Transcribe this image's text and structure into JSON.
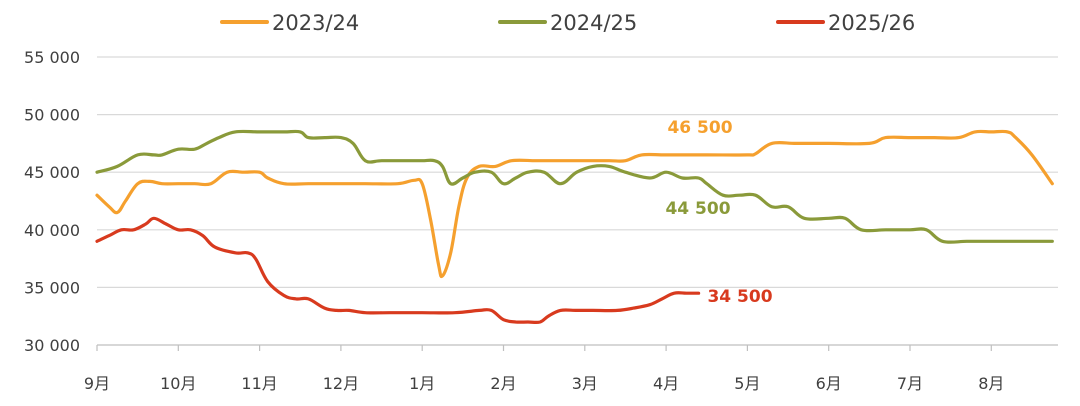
{
  "chart_data": {
    "type": "line",
    "title": "",
    "xlabel": "",
    "ylabel": "",
    "ylim": [
      30000,
      55000
    ],
    "yticks": [
      30000,
      35000,
      40000,
      45000,
      50000,
      55000
    ],
    "ytick_labels": [
      "30 000",
      "35 000",
      "40 000",
      "45 000",
      "50 000",
      "55 000"
    ],
    "months": [
      "9月",
      "10月",
      "11月",
      "12月",
      "1月",
      "2月",
      "3月",
      "4月",
      "5月",
      "6月",
      "7月",
      "8月"
    ],
    "x_unit": "month index (0 = start of 9月)",
    "grid": true,
    "legend_position": "top",
    "series": [
      {
        "name": "2023/24",
        "color": "#F5A02E",
        "end_label": "46 500",
        "points": [
          [
            0,
            43000
          ],
          [
            0.15,
            42000
          ],
          [
            0.25,
            41500
          ],
          [
            0.35,
            42500
          ],
          [
            0.5,
            44000
          ],
          [
            0.65,
            44200
          ],
          [
            0.8,
            44000
          ],
          [
            1.0,
            44000
          ],
          [
            1.2,
            44000
          ],
          [
            1.4,
            44000
          ],
          [
            1.6,
            45000
          ],
          [
            1.8,
            45000
          ],
          [
            2.0,
            45000
          ],
          [
            2.1,
            44500
          ],
          [
            2.3,
            44000
          ],
          [
            2.6,
            44000
          ],
          [
            3.0,
            44000
          ],
          [
            3.3,
            44000
          ],
          [
            3.7,
            44000
          ],
          [
            3.9,
            44300
          ],
          [
            4.0,
            44000
          ],
          [
            4.1,
            41000
          ],
          [
            4.2,
            37000
          ],
          [
            4.25,
            36000
          ],
          [
            4.35,
            38000
          ],
          [
            4.45,
            42000
          ],
          [
            4.55,
            44500
          ],
          [
            4.7,
            45500
          ],
          [
            4.9,
            45500
          ],
          [
            5.1,
            46000
          ],
          [
            5.4,
            46000
          ],
          [
            5.7,
            46000
          ],
          [
            6.0,
            46000
          ],
          [
            6.3,
            46000
          ],
          [
            6.5,
            46000
          ],
          [
            6.7,
            46500
          ],
          [
            7.0,
            46500
          ],
          [
            7.5,
            46500
          ],
          [
            8.0,
            46500
          ],
          [
            8.1,
            46600
          ],
          [
            8.3,
            47500
          ],
          [
            8.6,
            47500
          ],
          [
            9.0,
            47500
          ],
          [
            9.5,
            47500
          ],
          [
            9.7,
            48000
          ],
          [
            10.0,
            48000
          ],
          [
            10.3,
            48000
          ],
          [
            10.6,
            48000
          ],
          [
            10.8,
            48500
          ],
          [
            11.0,
            48500
          ],
          [
            11.2,
            48500
          ],
          [
            11.3,
            48000
          ],
          [
            11.5,
            46500
          ],
          [
            11.75,
            44000
          ]
        ]
      },
      {
        "name": "2024/25",
        "color": "#8A9A3A",
        "end_label": "44 500",
        "points": [
          [
            0,
            45000
          ],
          [
            0.25,
            45500
          ],
          [
            0.5,
            46500
          ],
          [
            0.7,
            46500
          ],
          [
            0.8,
            46500
          ],
          [
            1.0,
            47000
          ],
          [
            1.2,
            47000
          ],
          [
            1.35,
            47500
          ],
          [
            1.5,
            48000
          ],
          [
            1.7,
            48500
          ],
          [
            2.0,
            48500
          ],
          [
            2.3,
            48500
          ],
          [
            2.5,
            48500
          ],
          [
            2.6,
            48000
          ],
          [
            2.8,
            48000
          ],
          [
            3.0,
            48000
          ],
          [
            3.15,
            47500
          ],
          [
            3.3,
            46000
          ],
          [
            3.5,
            46000
          ],
          [
            3.8,
            46000
          ],
          [
            4.0,
            46000
          ],
          [
            4.15,
            46000
          ],
          [
            4.25,
            45500
          ],
          [
            4.35,
            44000
          ],
          [
            4.5,
            44500
          ],
          [
            4.65,
            45000
          ],
          [
            4.85,
            45000
          ],
          [
            5.0,
            44000
          ],
          [
            5.15,
            44500
          ],
          [
            5.3,
            45000
          ],
          [
            5.5,
            45000
          ],
          [
            5.7,
            44000
          ],
          [
            5.9,
            45000
          ],
          [
            6.1,
            45500
          ],
          [
            6.3,
            45500
          ],
          [
            6.5,
            45000
          ],
          [
            6.8,
            44500
          ],
          [
            7.0,
            45000
          ],
          [
            7.2,
            44500
          ],
          [
            7.4,
            44500
          ],
          [
            7.5,
            44000
          ],
          [
            7.7,
            43000
          ],
          [
            7.9,
            43000
          ],
          [
            8.1,
            43000
          ],
          [
            8.3,
            42000
          ],
          [
            8.5,
            42000
          ],
          [
            8.7,
            41000
          ],
          [
            9.0,
            41000
          ],
          [
            9.2,
            41000
          ],
          [
            9.4,
            40000
          ],
          [
            9.7,
            40000
          ],
          [
            10.0,
            40000
          ],
          [
            10.2,
            40000
          ],
          [
            10.4,
            39000
          ],
          [
            10.7,
            39000
          ],
          [
            11.0,
            39000
          ],
          [
            11.4,
            39000
          ],
          [
            11.75,
            39000
          ]
        ]
      },
      {
        "name": "2025/26",
        "color": "#D83A1E",
        "end_label": "34 500",
        "points": [
          [
            0,
            39000
          ],
          [
            0.15,
            39500
          ],
          [
            0.3,
            40000
          ],
          [
            0.45,
            40000
          ],
          [
            0.6,
            40500
          ],
          [
            0.7,
            41000
          ],
          [
            0.85,
            40500
          ],
          [
            1.0,
            40000
          ],
          [
            1.15,
            40000
          ],
          [
            1.3,
            39500
          ],
          [
            1.45,
            38500
          ],
          [
            1.7,
            38000
          ],
          [
            1.85,
            38000
          ],
          [
            1.95,
            37500
          ],
          [
            2.1,
            35500
          ],
          [
            2.3,
            34300
          ],
          [
            2.45,
            34000
          ],
          [
            2.6,
            34000
          ],
          [
            2.8,
            33200
          ],
          [
            2.95,
            33000
          ],
          [
            3.1,
            33000
          ],
          [
            3.3,
            32800
          ],
          [
            3.6,
            32800
          ],
          [
            4.0,
            32800
          ],
          [
            4.4,
            32800
          ],
          [
            4.7,
            33000
          ],
          [
            4.85,
            33000
          ],
          [
            5.0,
            32200
          ],
          [
            5.15,
            32000
          ],
          [
            5.3,
            32000
          ],
          [
            5.45,
            32000
          ],
          [
            5.55,
            32500
          ],
          [
            5.7,
            33000
          ],
          [
            5.9,
            33000
          ],
          [
            6.1,
            33000
          ],
          [
            6.4,
            33000
          ],
          [
            6.6,
            33200
          ],
          [
            6.8,
            33500
          ],
          [
            6.95,
            34000
          ],
          [
            7.1,
            34500
          ],
          [
            7.25,
            34500
          ],
          [
            7.4,
            34500
          ]
        ]
      }
    ]
  }
}
